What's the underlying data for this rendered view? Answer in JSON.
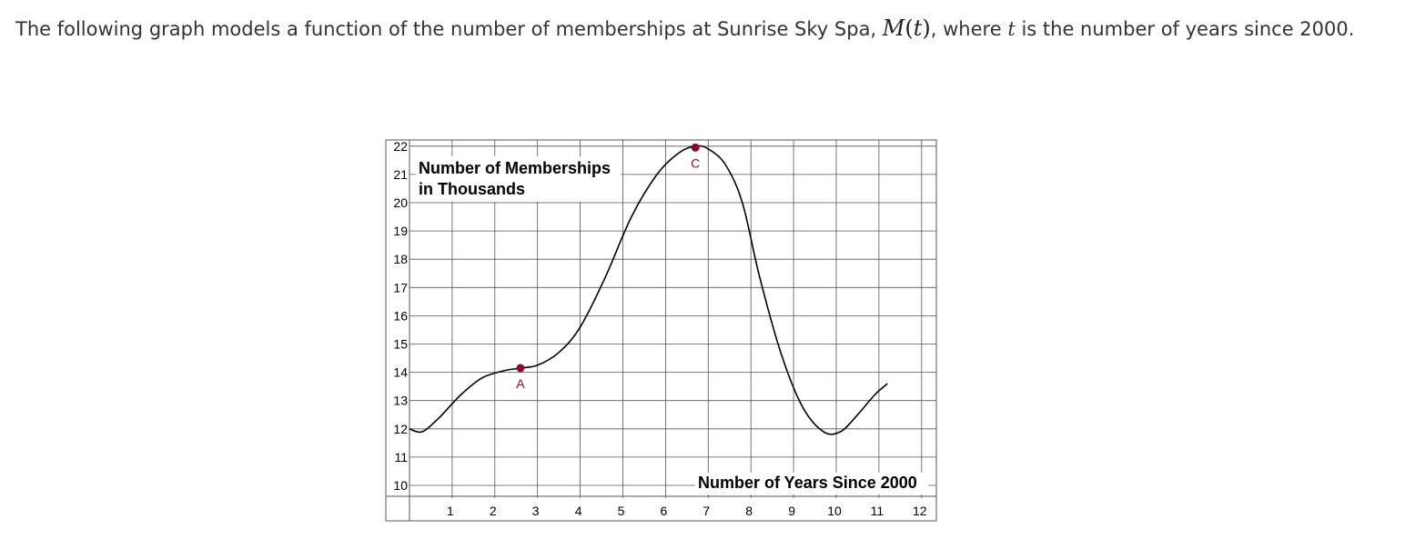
{
  "question": {
    "intro": "The following graph models a function of the number of memberships at Sunrise Sky Spa,",
    "func_name": "M",
    "func_var": "t",
    "middle": ", where",
    "var_name": "t",
    "ending": "is the number of years since 2000."
  },
  "chart_data": {
    "type": "line",
    "title": "",
    "ylabel": "Number of Memberships in Thousands",
    "ylabel_line1": "Number of Memberships",
    "ylabel_line2": "in Thousands",
    "xlabel": "Number of Years Since 2000",
    "xlim": [
      0,
      12
    ],
    "ylim": [
      10,
      22
    ],
    "grid": true,
    "x_ticks": [
      1,
      2,
      3,
      4,
      5,
      6,
      7,
      8,
      9,
      10,
      11,
      12
    ],
    "y_ticks": [
      10,
      11,
      12,
      13,
      14,
      15,
      16,
      17,
      18,
      19,
      20,
      21,
      22
    ],
    "series": [
      {
        "name": "M(t)",
        "x": [
          0,
          0.3,
          0.7,
          1.2,
          1.7,
          2.2,
          2.6,
          3.0,
          3.5,
          4.0,
          4.6,
          5.2,
          5.8,
          6.3,
          6.7,
          7.0,
          7.4,
          7.8,
          8.2,
          8.7,
          9.2,
          9.7,
          10.1,
          10.5,
          10.9,
          11.2
        ],
        "y": [
          12.0,
          11.9,
          12.4,
          13.2,
          13.8,
          14.05,
          14.15,
          14.25,
          14.7,
          15.6,
          17.4,
          19.5,
          21.0,
          21.75,
          22.0,
          21.9,
          21.35,
          20.0,
          17.4,
          14.7,
          12.8,
          11.9,
          11.9,
          12.5,
          13.2,
          13.6
        ]
      }
    ],
    "points": [
      {
        "label": "A",
        "x": 2.6,
        "y": 14.15
      },
      {
        "label": "C",
        "x": 6.7,
        "y": 21.95
      }
    ],
    "colors": {
      "curve": "#000000",
      "grid": "#555555",
      "point": "#8b0a2e"
    }
  }
}
